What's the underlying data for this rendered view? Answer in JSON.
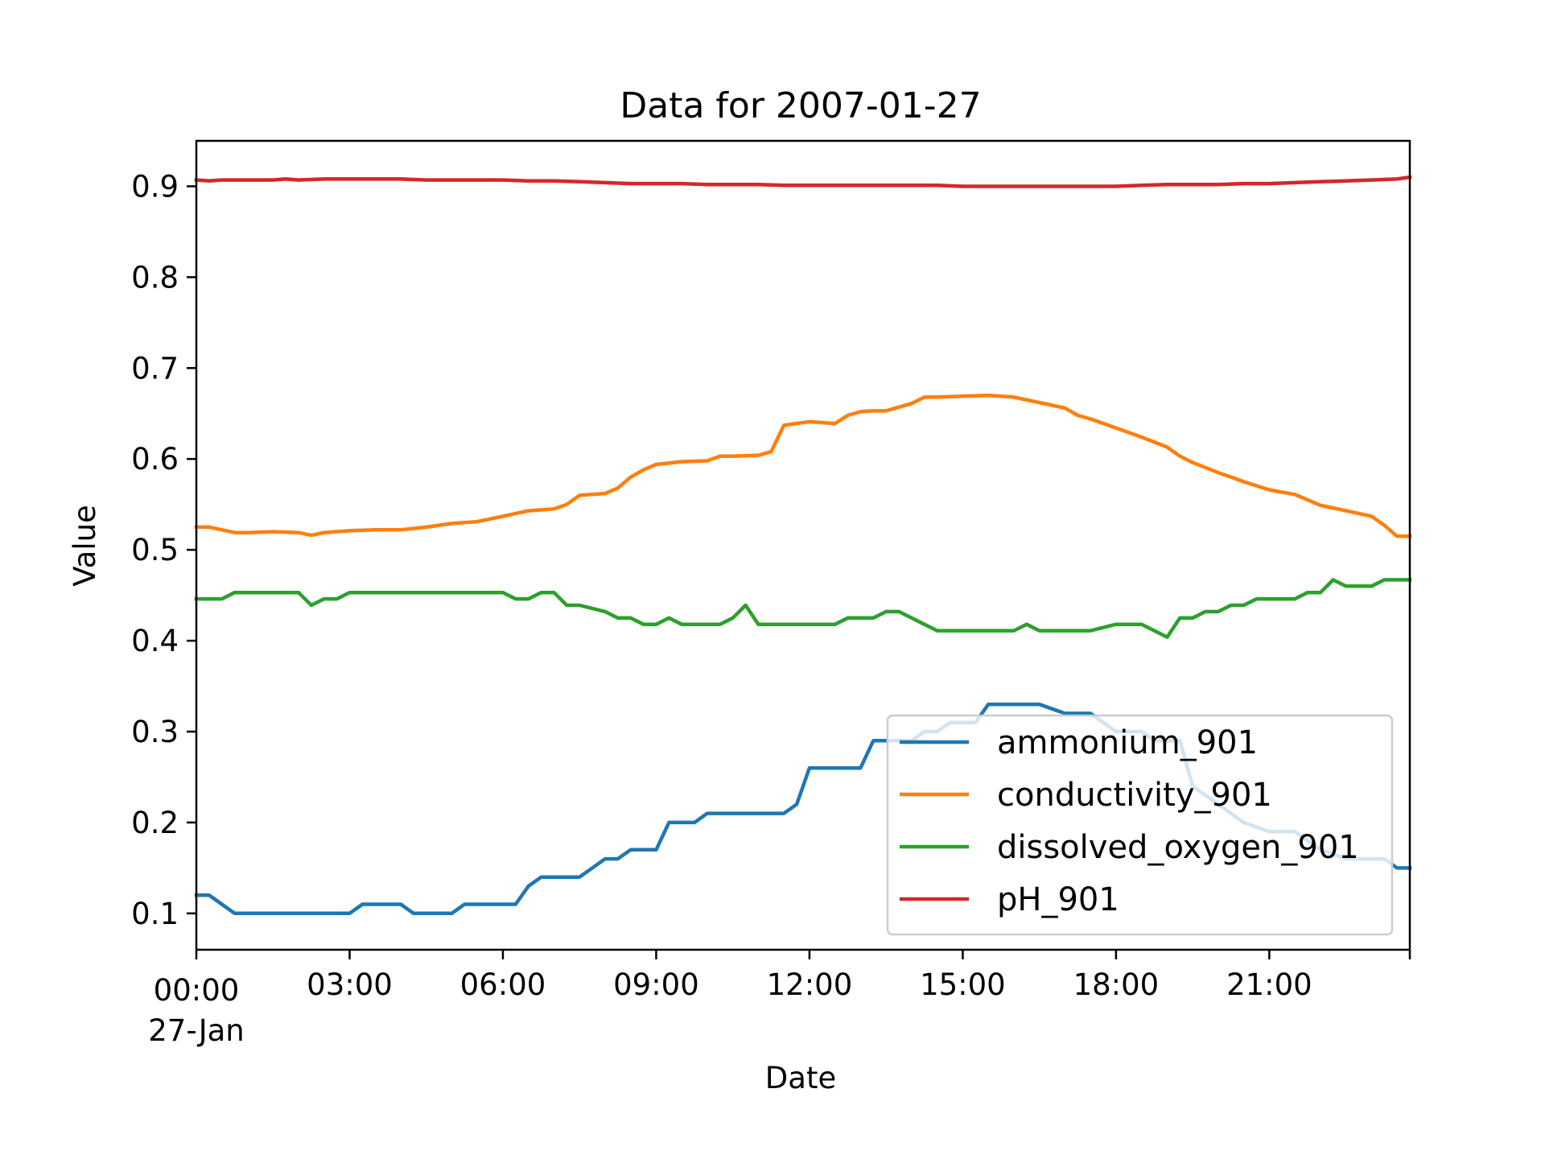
{
  "chart_data": {
    "type": "line",
    "title": "Data for 2007-01-27",
    "xlabel": "Date",
    "ylabel": "Value",
    "x_ticks": [
      {
        "hour": 0,
        "label": "00:00",
        "sublabel": "27-Jan"
      },
      {
        "hour": 3,
        "label": "03:00"
      },
      {
        "hour": 6,
        "label": "06:00"
      },
      {
        "hour": 9,
        "label": "09:00"
      },
      {
        "hour": 12,
        "label": "12:00"
      },
      {
        "hour": 15,
        "label": "15:00"
      },
      {
        "hour": 18,
        "label": "18:00"
      },
      {
        "hour": 21,
        "label": "21:00"
      }
    ],
    "xlim_hours": [
      0,
      23.75
    ],
    "y_ticks": [
      0.1,
      0.2,
      0.3,
      0.4,
      0.5,
      0.6,
      0.7,
      0.8,
      0.9
    ],
    "y_tick_labels": [
      "0.1",
      "0.2",
      "0.3",
      "0.4",
      "0.5",
      "0.6",
      "0.7",
      "0.8",
      "0.9"
    ],
    "ylim": [
      0.06,
      0.95
    ],
    "grid": false,
    "legend_position": "lower-right",
    "series": [
      {
        "name": "ammonium_901",
        "color": "#1f77b4",
        "x": [
          0,
          0.25,
          0.5,
          0.75,
          1,
          1.5,
          2,
          2.5,
          3,
          3.25,
          3.5,
          4,
          4.25,
          4.5,
          5,
          5.25,
          5.5,
          6,
          6.25,
          6.5,
          6.75,
          7,
          7.5,
          7.75,
          8,
          8.25,
          8.5,
          9,
          9.25,
          9.5,
          9.75,
          10,
          10.25,
          10.5,
          11,
          11.5,
          11.75,
          12,
          12.5,
          12.75,
          13,
          13.25,
          13.5,
          14,
          14.25,
          14.5,
          14.75,
          15,
          15.25,
          15.5,
          16,
          16.25,
          16.5,
          17,
          17.25,
          17.5,
          18,
          18.5,
          18.75,
          19,
          19.25,
          19.5,
          20,
          20.25,
          20.5,
          21,
          21.5,
          22,
          22.5,
          23,
          23.25,
          23.5,
          23.75
        ],
        "y": [
          0.12,
          0.12,
          0.11,
          0.1,
          0.1,
          0.1,
          0.1,
          0.1,
          0.1,
          0.11,
          0.11,
          0.11,
          0.1,
          0.1,
          0.1,
          0.11,
          0.11,
          0.11,
          0.11,
          0.13,
          0.14,
          0.14,
          0.14,
          0.15,
          0.16,
          0.16,
          0.17,
          0.17,
          0.2,
          0.2,
          0.2,
          0.21,
          0.21,
          0.21,
          0.21,
          0.21,
          0.22,
          0.26,
          0.26,
          0.26,
          0.26,
          0.29,
          0.29,
          0.29,
          0.3,
          0.3,
          0.31,
          0.31,
          0.31,
          0.33,
          0.33,
          0.33,
          0.33,
          0.32,
          0.32,
          0.32,
          0.3,
          0.3,
          0.29,
          0.29,
          0.29,
          0.24,
          0.22,
          0.21,
          0.2,
          0.19,
          0.19,
          0.17,
          0.16,
          0.16,
          0.16,
          0.15,
          0.15
        ]
      },
      {
        "name": "conductivity_901",
        "color": "#ff7f0e",
        "x": [
          0,
          0.25,
          0.5,
          0.75,
          1,
          1.5,
          2,
          2.25,
          2.5,
          3,
          3.5,
          4,
          4.5,
          5,
          5.5,
          6,
          6.5,
          7,
          7.25,
          7.5,
          8,
          8.25,
          8.5,
          8.75,
          9,
          9.5,
          10,
          10.25,
          10.5,
          11,
          11.25,
          11.5,
          12,
          12.5,
          12.75,
          13,
          13.25,
          13.5,
          14,
          14.25,
          14.5,
          15,
          15.5,
          16,
          16.5,
          17,
          17.25,
          17.5,
          18,
          18.5,
          19,
          19.25,
          19.5,
          20,
          20.25,
          20.5,
          21,
          21.5,
          22,
          22.25,
          22.5,
          23,
          23.25,
          23.5,
          23.75
        ],
        "y": [
          0.525,
          0.525,
          0.522,
          0.519,
          0.519,
          0.52,
          0.519,
          0.516,
          0.519,
          0.521,
          0.522,
          0.522,
          0.525,
          0.529,
          0.531,
          0.537,
          0.543,
          0.545,
          0.55,
          0.56,
          0.562,
          0.568,
          0.58,
          0.588,
          0.594,
          0.597,
          0.598,
          0.603,
          0.603,
          0.604,
          0.608,
          0.637,
          0.641,
          0.639,
          0.648,
          0.652,
          0.653,
          0.653,
          0.661,
          0.668,
          0.668,
          0.669,
          0.67,
          0.668,
          0.662,
          0.656,
          0.648,
          0.644,
          0.634,
          0.624,
          0.613,
          0.603,
          0.596,
          0.585,
          0.58,
          0.575,
          0.566,
          0.561,
          0.549,
          0.546,
          0.543,
          0.537,
          0.527,
          0.515,
          0.515
        ]
      },
      {
        "name": "dissolved_oxygen_901",
        "color": "#2ca02c",
        "x": [
          0,
          0.25,
          0.5,
          0.75,
          1,
          1.5,
          2,
          2.25,
          2.5,
          2.75,
          3,
          3.5,
          4,
          4.5,
          5,
          5.5,
          6,
          6.25,
          6.5,
          6.75,
          7,
          7.25,
          7.5,
          8,
          8.25,
          8.5,
          8.75,
          9,
          9.25,
          9.5,
          9.75,
          10,
          10.25,
          10.5,
          10.75,
          11,
          11.25,
          11.5,
          12,
          12.5,
          12.75,
          13,
          13.25,
          13.5,
          13.75,
          14,
          14.25,
          14.5,
          14.75,
          15,
          15.5,
          16,
          16.25,
          16.5,
          17,
          17.5,
          18,
          18.25,
          18.5,
          18.75,
          19,
          19.25,
          19.5,
          19.75,
          20,
          20.25,
          20.5,
          20.75,
          21,
          21.25,
          21.5,
          21.75,
          22,
          22.25,
          22.5,
          23,
          23.25,
          23.5,
          23.75
        ],
        "y": [
          0.446,
          0.446,
          0.446,
          0.453,
          0.453,
          0.453,
          0.453,
          0.439,
          0.446,
          0.446,
          0.453,
          0.453,
          0.453,
          0.453,
          0.453,
          0.453,
          0.453,
          0.446,
          0.446,
          0.453,
          0.453,
          0.439,
          0.439,
          0.432,
          0.425,
          0.425,
          0.418,
          0.418,
          0.425,
          0.418,
          0.418,
          0.418,
          0.418,
          0.425,
          0.439,
          0.418,
          0.418,
          0.418,
          0.418,
          0.418,
          0.425,
          0.425,
          0.425,
          0.432,
          0.432,
          0.425,
          0.418,
          0.411,
          0.411,
          0.411,
          0.411,
          0.411,
          0.418,
          0.411,
          0.411,
          0.411,
          0.418,
          0.418,
          0.418,
          0.411,
          0.404,
          0.425,
          0.425,
          0.432,
          0.432,
          0.439,
          0.439,
          0.446,
          0.446,
          0.446,
          0.446,
          0.453,
          0.453,
          0.467,
          0.46,
          0.46,
          0.467,
          0.467,
          0.467
        ]
      },
      {
        "name": "pH_901",
        "color": "#d62728",
        "x": [
          0,
          0.25,
          0.5,
          1,
          1.5,
          1.75,
          2,
          2.5,
          3,
          3.5,
          4,
          4.5,
          5,
          5.5,
          6,
          6.5,
          7,
          7.5,
          8,
          8.5,
          9,
          9.5,
          10,
          10.5,
          11,
          11.5,
          12,
          12.5,
          13,
          13.5,
          14,
          14.5,
          15,
          15.5,
          16,
          16.5,
          17,
          17.5,
          18,
          18.5,
          19,
          19.5,
          20,
          20.5,
          21,
          21.5,
          22,
          22.5,
          23,
          23.5,
          23.75
        ],
        "y": [
          0.907,
          0.906,
          0.907,
          0.907,
          0.907,
          0.908,
          0.907,
          0.908,
          0.908,
          0.908,
          0.908,
          0.907,
          0.907,
          0.907,
          0.907,
          0.906,
          0.906,
          0.905,
          0.904,
          0.903,
          0.903,
          0.903,
          0.902,
          0.902,
          0.902,
          0.901,
          0.901,
          0.901,
          0.901,
          0.901,
          0.901,
          0.901,
          0.9,
          0.9,
          0.9,
          0.9,
          0.9,
          0.9,
          0.9,
          0.901,
          0.902,
          0.902,
          0.902,
          0.903,
          0.903,
          0.904,
          0.905,
          0.906,
          0.907,
          0.908,
          0.91
        ]
      }
    ]
  }
}
